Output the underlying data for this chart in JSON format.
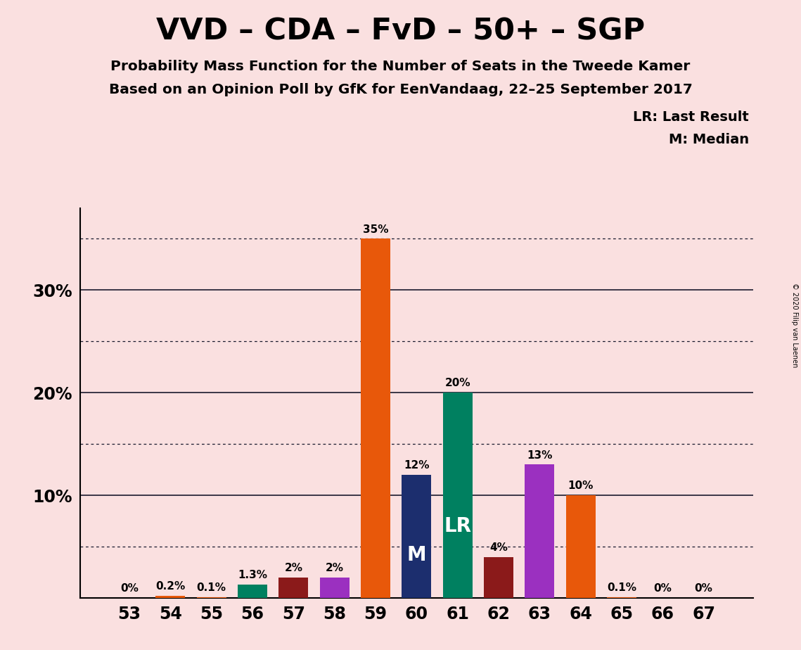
{
  "title": "VVD – CDA – FvD – 50+ – SGP",
  "subtitle1": "Probability Mass Function for the Number of Seats in the Tweede Kamer",
  "subtitle2": "Based on an Opinion Poll by GfK for EenVandaag, 22–25 September 2017",
  "copyright": "© 2020 Filip van Laenen",
  "legend_lr": "LR: Last Result",
  "legend_m": "M: Median",
  "seats": [
    53,
    54,
    55,
    56,
    57,
    58,
    59,
    60,
    61,
    62,
    63,
    64,
    65,
    66,
    67
  ],
  "probabilities": [
    0.0,
    0.2,
    0.1,
    1.3,
    2.0,
    2.0,
    35.0,
    12.0,
    20.0,
    4.0,
    13.0,
    10.0,
    0.1,
    0.0,
    0.0
  ],
  "prob_labels": [
    "0%",
    "0.2%",
    "0.1%",
    "1.3%",
    "2%",
    "2%",
    "35%",
    "12%",
    "20%",
    "4%",
    "13%",
    "10%",
    "0.1%",
    "0%",
    "0%"
  ],
  "bar_colors": [
    "#E8580A",
    "#E8580A",
    "#E8580A",
    "#008060",
    "#8B1A1A",
    "#9B30C0",
    "#E8580A",
    "#1C2E6E",
    "#008060",
    "#8B1A1A",
    "#9B30C0",
    "#E8580A",
    "#E8580A",
    "#E8580A",
    "#E8580A"
  ],
  "inside_labels": {
    "60": "M",
    "61": "LR"
  },
  "background_color": "#FAE0E0",
  "ylim_max": 38,
  "solid_yticks": [
    10,
    20,
    30
  ],
  "dotted_yticks": [
    5,
    15,
    25,
    35
  ],
  "ytick_labels": {
    "10": "10%",
    "20": "20%",
    "30": "30%"
  },
  "bar_width": 0.72
}
